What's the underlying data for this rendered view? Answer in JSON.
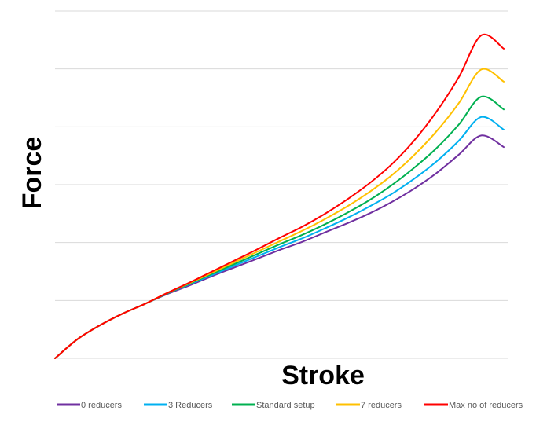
{
  "chart_data": {
    "type": "line",
    "title": "",
    "xlabel": "Stroke",
    "ylabel": "Force",
    "xlim": [
      0,
      1
    ],
    "ylim": [
      0,
      6
    ],
    "grid": true,
    "legend_position": "bottom",
    "x": [
      0,
      0.05,
      0.1,
      0.15,
      0.2,
      0.25,
      0.3,
      0.35,
      0.4,
      0.45,
      0.5,
      0.55,
      0.6,
      0.65,
      0.7,
      0.75,
      0.8,
      0.85,
      0.9,
      0.95,
      1.0
    ],
    "series": [
      {
        "name": "0 reducers",
        "color": "#7030a0",
        "values": [
          0,
          0.33,
          0.57,
          0.77,
          0.94,
          1.11,
          1.26,
          1.42,
          1.57,
          1.72,
          1.87,
          2.01,
          2.17,
          2.33,
          2.5,
          2.7,
          2.93,
          3.2,
          3.52,
          3.85,
          3.65
        ]
      },
      {
        "name": "3 Reducers",
        "color": "#00b0f0",
        "values": [
          0,
          0.33,
          0.57,
          0.77,
          0.94,
          1.12,
          1.28,
          1.44,
          1.6,
          1.76,
          1.92,
          2.07,
          2.24,
          2.42,
          2.62,
          2.84,
          3.1,
          3.4,
          3.76,
          4.17,
          3.95
        ]
      },
      {
        "name": "Standard setup",
        "color": "#00b050",
        "values": [
          0,
          0.33,
          0.57,
          0.77,
          0.94,
          1.12,
          1.29,
          1.46,
          1.63,
          1.8,
          1.97,
          2.13,
          2.31,
          2.51,
          2.73,
          2.99,
          3.29,
          3.63,
          4.04,
          4.52,
          4.3
        ]
      },
      {
        "name": "7 reducers",
        "color": "#ffc000",
        "values": [
          0,
          0.33,
          0.57,
          0.77,
          0.94,
          1.13,
          1.3,
          1.48,
          1.66,
          1.84,
          2.02,
          2.2,
          2.4,
          2.62,
          2.87,
          3.16,
          3.51,
          3.92,
          4.41,
          4.99,
          4.78
        ]
      },
      {
        "name": "Max no of reducers",
        "color": "#ff0000",
        "values": [
          0,
          0.33,
          0.57,
          0.77,
          0.94,
          1.13,
          1.31,
          1.5,
          1.69,
          1.88,
          2.08,
          2.27,
          2.49,
          2.74,
          3.02,
          3.35,
          3.76,
          4.26,
          4.86,
          5.58,
          5.35
        ]
      }
    ]
  }
}
